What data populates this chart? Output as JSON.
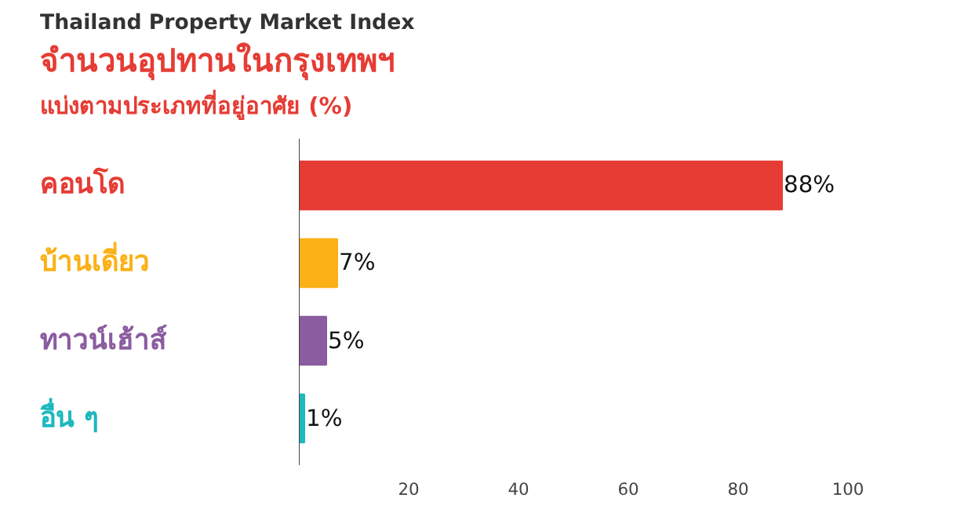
{
  "chart_data": {
    "type": "bar",
    "orientation": "horizontal",
    "title": "จำนวนอุปทานในกรุงเทพฯ",
    "subtitle": "แบ่งตามประเภทที่อยู่อาศัย (%)",
    "annotations": [
      "Thailand Property Market Index"
    ],
    "categories": [
      "คอนโด",
      "บ้านเดี่ยว",
      "ทาวน์เฮ้าส์",
      "อื่น ๆ"
    ],
    "values": [
      88,
      7,
      5,
      1
    ],
    "colors": [
      "#e53c34",
      "#fbb116",
      "#8b5ca0",
      "#1db8bd"
    ],
    "value_labels": [
      "88%",
      "7%",
      "5%",
      "1%"
    ],
    "xlim": [
      0,
      100
    ],
    "xticks": [
      20,
      40,
      60,
      80,
      100
    ],
    "grid": false
  }
}
